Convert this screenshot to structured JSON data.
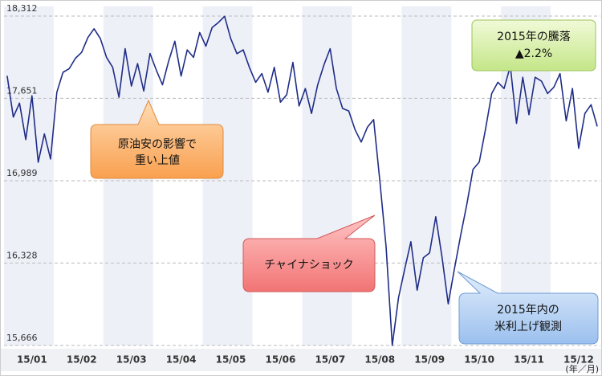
{
  "chart_data": {
    "type": "line",
    "categories": [
      null,
      null,
      null,
      null,
      "15/01",
      null,
      null,
      null,
      null,
      null,
      null,
      null,
      "15/02",
      null,
      null,
      null,
      null,
      null,
      null,
      null,
      "15/03",
      null,
      null,
      null,
      null,
      null,
      null,
      null,
      "15/04",
      null,
      null,
      null,
      null,
      null,
      null,
      null,
      "15/05",
      null,
      null,
      null,
      null,
      null,
      null,
      null,
      "15/06",
      null,
      null,
      null,
      null,
      null,
      null,
      null,
      "15/07",
      null,
      null,
      null,
      null,
      null,
      null,
      null,
      "15/08",
      null,
      null,
      null,
      null,
      null,
      null,
      null,
      "15/09",
      null,
      null,
      null,
      null,
      null,
      null,
      null,
      "15/10",
      null,
      null,
      null,
      null,
      null,
      null,
      null,
      "15/11",
      null,
      null,
      null,
      null,
      null,
      null,
      null,
      "15/12",
      null,
      null,
      null
    ],
    "values": [
      17832,
      17501,
      17613,
      17320,
      17672,
      17138,
      17365,
      17164,
      17700,
      17860,
      17890,
      17973,
      18020,
      18140,
      18210,
      18132,
      17980,
      17900,
      17660,
      18050,
      17750,
      17930,
      17710,
      18011,
      17880,
      17760,
      17950,
      18110,
      17830,
      18040,
      17980,
      18180,
      18070,
      18220,
      18260,
      18310,
      18130,
      18010,
      18040,
      17900,
      17780,
      17850,
      17700,
      17900,
      17620,
      17680,
      17940,
      17590,
      17730,
      17530,
      17760,
      17920,
      18050,
      17730,
      17570,
      17550,
      17400,
      17300,
      17420,
      17480,
      16990,
      16460,
      15666,
      16050,
      16280,
      16500,
      16110,
      16370,
      16410,
      16700,
      16380,
      16000,
      16280,
      16550,
      16800,
      17080,
      17140,
      17400,
      17690,
      17780,
      17730,
      17910,
      17450,
      17820,
      17520,
      17820,
      17790,
      17690,
      17740,
      17850,
      17470,
      17730,
      17250,
      17530,
      17600,
      17425
    ],
    "color": "#1f2d86",
    "ylim": [
      15666,
      18312
    ],
    "yticks": [
      {
        "value": 15666,
        "label": "15,666"
      },
      {
        "value": 16328,
        "label": "16,328"
      },
      {
        "value": 16989,
        "label": "16,989"
      },
      {
        "value": 17651,
        "label": "17,651"
      },
      {
        "value": 18312,
        "label": "18,312"
      }
    ],
    "grid": true,
    "x_label": "(年／月)",
    "annotations": [
      {
        "lines": [
          "原油安の影響で",
          "重い上値"
        ]
      },
      {
        "lines": [
          "チャイナショック"
        ]
      },
      {
        "lines": [
          "2015年内の",
          "米利上げ観測"
        ]
      },
      {
        "lines": [
          "2015年の騰落",
          "▲2.2%"
        ]
      }
    ]
  }
}
